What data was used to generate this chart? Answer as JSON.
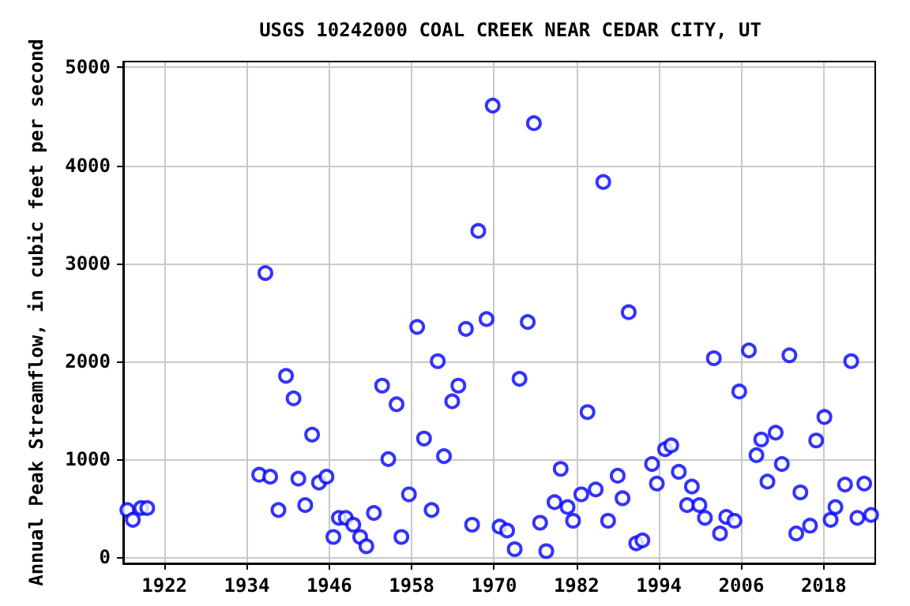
{
  "chart_data": {
    "type": "scatter",
    "title": "USGS 10242000 COAL CREEK NEAR CEDAR CITY, UT",
    "ylabel": "Annual Peak Streamflow, in cubic feet per second",
    "xlim": [
      1916,
      2025.5
    ],
    "xticks": [
      1922,
      1934,
      1946,
      1958,
      1970,
      1982,
      1994,
      2006,
      2018
    ],
    "ylim": [
      -65,
      5060
    ],
    "yticks": [
      0,
      1000,
      2000,
      3000,
      4000,
      5000
    ],
    "grid": true,
    "marker": "circle",
    "series": [
      {
        "color": "#0000ff",
        "x": [
          1916.6,
          1917.4,
          1918.6,
          1919.5,
          1935.8,
          1936.7,
          1937.4,
          1938.6,
          1939.7,
          1940.8,
          1941.5,
          1942.5,
          1943.5,
          1944.5,
          1945.6,
          1946.6,
          1947.4,
          1948.4,
          1949.5,
          1950.5,
          1951.4,
          1952.5,
          1953.7,
          1954.6,
          1955.8,
          1956.5,
          1957.6,
          1958.8,
          1959.8,
          1960.9,
          1961.8,
          1962.7,
          1963.9,
          1964.8,
          1965.9,
          1966.8,
          1967.7,
          1968.9,
          1969.8,
          1970.8,
          1971.9,
          1973,
          1973.7,
          1974.9,
          1975.8,
          1976.7,
          1977.6,
          1978.8,
          1979.7,
          1980.7,
          1981.5,
          1982.7,
          1983.6,
          1984.8,
          1985.9,
          1986.6,
          1988,
          1988.7,
          1989.6,
          1990.7,
          1991.6,
          1993,
          1993.7,
          1994.9,
          1995.8,
          1996.9,
          1998.1,
          1998.8,
          1999.9,
          2000.7,
          2002,
          2002.9,
          2003.8,
          2005,
          2005.7,
          2007.1,
          2008.2,
          2008.9,
          2009.8,
          2011,
          2011.9,
          2013,
          2014,
          2014.6,
          2016,
          2016.9,
          2018.1,
          2019,
          2019.7,
          2021.1,
          2022,
          2022.9,
          2023.9,
          2024.9
        ],
        "values": [
          480,
          380,
          500,
          500,
          840,
          2900,
          820,
          480,
          1850,
          1620,
          800,
          530,
          1250,
          760,
          820,
          205,
          400,
          400,
          330,
          205,
          110,
          450,
          1750,
          1000,
          1560,
          205,
          640,
          2350,
          1210,
          480,
          2000,
          1030,
          1590,
          1750,
          2330,
          330,
          3330,
          2430,
          4610,
          310,
          270,
          80,
          1820,
          2400,
          4430,
          350,
          60,
          560,
          900,
          510,
          370,
          640,
          1480,
          690,
          3830,
          370,
          830,
          600,
          2500,
          140,
          170,
          950,
          750,
          1100,
          1140,
          870,
          530,
          720,
          530,
          400,
          2030,
          240,
          410,
          370,
          1690,
          2110,
          1040,
          1200,
          770,
          1270,
          950,
          2060,
          240,
          660,
          320,
          1190,
          1430,
          380,
          510,
          740,
          2000,
          400,
          750,
          430
        ]
      }
    ]
  }
}
